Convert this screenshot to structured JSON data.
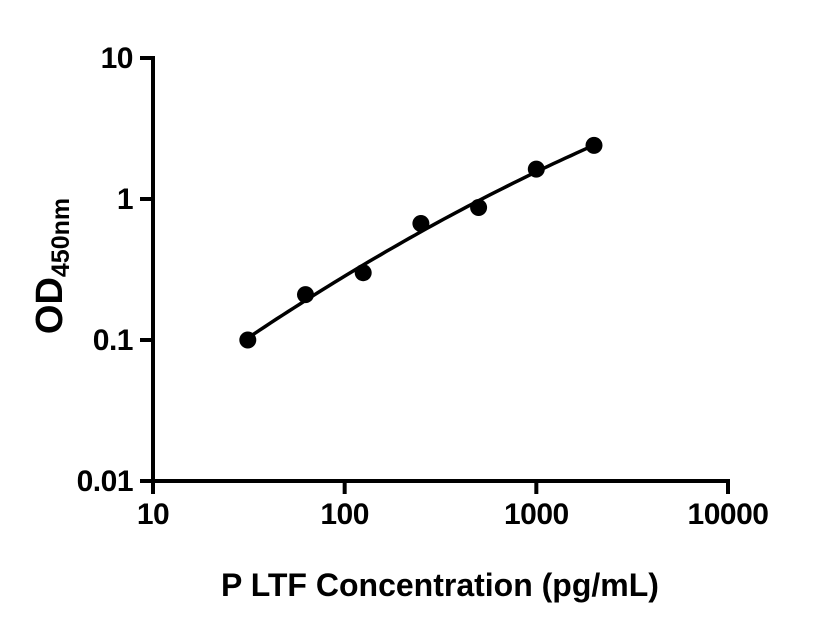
{
  "chart_data": {
    "type": "scatter",
    "title": "",
    "x": [
      31.25,
      62.5,
      125,
      250,
      500,
      1000,
      2000
    ],
    "y": [
      0.1,
      0.21,
      0.3,
      0.67,
      0.87,
      1.63,
      2.4
    ],
    "x_scale": "log",
    "y_scale": "log",
    "xlim": [
      10,
      10000
    ],
    "ylim": [
      0.01,
      10
    ],
    "x_tick_values": [
      10,
      100,
      1000,
      10000
    ],
    "x_tick_labels": [
      "10",
      "100",
      "1000",
      "10000"
    ],
    "y_tick_values": [
      10,
      1,
      0.1,
      0.01
    ],
    "y_tick_labels": [
      "10",
      "1",
      "0.1",
      "0.01"
    ],
    "xlabel": "P LTF Concentration (pg/mL)",
    "ylabel_main": "OD",
    "ylabel_sub": "450nm",
    "grid": false,
    "legend": false,
    "trend_line": true,
    "marker_shape": "filled-circle",
    "marker_color": "#000000",
    "line_color": "#000000",
    "axis_color": "#000000",
    "background_color": "#ffffff"
  }
}
